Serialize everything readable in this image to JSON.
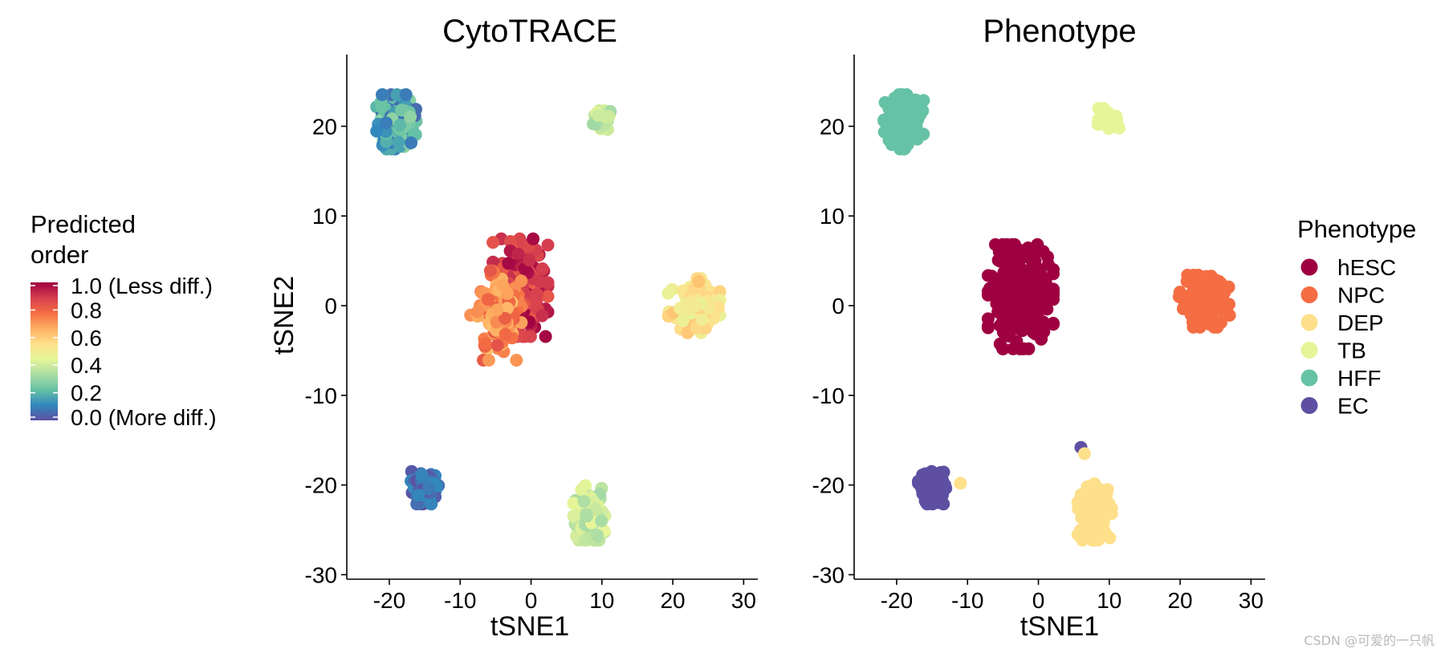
{
  "colors": {
    "hESC": "#9e0142",
    "NPC": "#f46d43",
    "DEP": "#fee08b",
    "TB": "#e6f598",
    "HFF": "#66c2a5",
    "EC": "#5e4fa2",
    "axis": "#000000"
  },
  "legend_cytotrace": {
    "title_line1": "Predicted",
    "title_line2": "order",
    "ticks": [
      {
        "value": 1.0,
        "label": "1.0 (Less diff.)"
      },
      {
        "value": 0.8,
        "label": "0.8"
      },
      {
        "value": 0.6,
        "label": "0.6"
      },
      {
        "value": 0.4,
        "label": "0.4"
      },
      {
        "value": 0.2,
        "label": "0.2"
      },
      {
        "value": 0.0,
        "label": "0.0 (More diff.)"
      }
    ],
    "gradient": [
      "#5e4fa2",
      "#3288bd",
      "#66c2a5",
      "#abdda4",
      "#e6f598",
      "#fee08b",
      "#fdae61",
      "#f46d43",
      "#d53e4f",
      "#9e0142"
    ]
  },
  "legend_phenotype": {
    "title": "Phenotype",
    "items": [
      "hESC",
      "NPC",
      "DEP",
      "TB",
      "HFF",
      "EC"
    ]
  },
  "watermark": "CSDN @可爱的一只帆",
  "chart_data": [
    {
      "type": "scatter",
      "title": "CytoTRACE",
      "xlabel": "tSNE1",
      "ylabel": "tSNE2",
      "xlim": [
        -26,
        32
      ],
      "ylim": [
        -30.5,
        28
      ],
      "xticks": [
        -20,
        -10,
        0,
        10,
        20,
        30
      ],
      "yticks": [
        -30,
        -20,
        -10,
        0,
        10,
        20
      ],
      "xtick_labels": [
        "-20",
        "-10",
        "0",
        "10",
        "20",
        "30"
      ],
      "ytick_labels": [
        "-30",
        "-20",
        "-10",
        "0",
        "10",
        "20"
      ],
      "color_by": "predicted_order",
      "legend_position": "left",
      "clusters": [
        {
          "phenotype": "hESC",
          "center": [
            -1.5,
            2.0
          ],
          "spread": [
            3.2,
            4.5
          ],
          "n": 230,
          "order_range": [
            0.82,
            1.0
          ]
        },
        {
          "phenotype": "NPC",
          "center": [
            -5.0,
            -1.0
          ],
          "spread": [
            3.0,
            4.2
          ],
          "n": 110,
          "order_range": [
            0.62,
            0.85
          ]
        },
        {
          "phenotype": "DEP",
          "center": [
            23.0,
            0.0
          ],
          "spread": [
            3.0,
            2.5
          ],
          "n": 130,
          "order_range": [
            0.45,
            0.62
          ]
        },
        {
          "phenotype": "TB",
          "center": [
            10.0,
            20.8
          ],
          "spread": [
            1.3,
            1.0
          ],
          "n": 40,
          "order_range": [
            0.3,
            0.45
          ]
        },
        {
          "phenotype": "TB",
          "center": [
            8.0,
            -23.0
          ],
          "spread": [
            2.0,
            2.6
          ],
          "n": 120,
          "order_range": [
            0.32,
            0.45
          ]
        },
        {
          "phenotype": "HFF",
          "center": [
            -19.0,
            20.5
          ],
          "spread": [
            2.3,
            2.5
          ],
          "n": 180,
          "order_range": [
            0.05,
            0.3
          ]
        },
        {
          "phenotype": "EC",
          "center": [
            -15.0,
            -20.3
          ],
          "spread": [
            1.6,
            1.5
          ],
          "n": 120,
          "order_range": [
            0.0,
            0.12
          ]
        }
      ]
    },
    {
      "type": "scatter",
      "title": "Phenotype",
      "xlabel": "tSNE1",
      "ylabel": "",
      "xlim": [
        -26,
        32
      ],
      "ylim": [
        -30.5,
        28
      ],
      "xticks": [
        -20,
        -10,
        0,
        10,
        20,
        30
      ],
      "yticks": [
        -30,
        -20,
        -10,
        0,
        10,
        20
      ],
      "xtick_labels": [
        "-20",
        "-10",
        "0",
        "10",
        "20",
        "30"
      ],
      "ytick_labels": [
        "-30",
        "-20",
        "-10",
        "0",
        "10",
        "20"
      ],
      "color_by": "phenotype",
      "legend_position": "right",
      "clusters": [
        {
          "phenotype": "hESC",
          "center": [
            -2.5,
            1.0
          ],
          "spread": [
            3.8,
            4.8
          ],
          "n": 300
        },
        {
          "phenotype": "NPC",
          "center": [
            23.5,
            0.5
          ],
          "spread": [
            3.0,
            2.4
          ],
          "n": 140
        },
        {
          "phenotype": "DEP",
          "center": [
            8.0,
            -23.0
          ],
          "spread": [
            2.0,
            2.6
          ],
          "n": 150
        },
        {
          "phenotype": "TB",
          "center": [
            10.0,
            20.8
          ],
          "spread": [
            1.3,
            1.0
          ],
          "n": 40
        },
        {
          "phenotype": "HFF",
          "center": [
            -19.0,
            20.5
          ],
          "spread": [
            2.3,
            2.5
          ],
          "n": 180
        },
        {
          "phenotype": "EC",
          "center": [
            -15.0,
            -20.3
          ],
          "spread": [
            1.6,
            1.5
          ],
          "n": 120
        }
      ],
      "outliers": [
        {
          "phenotype": "EC",
          "x": 6.0,
          "y": -15.8
        },
        {
          "phenotype": "DEP",
          "x": -11.0,
          "y": -19.8
        },
        {
          "phenotype": "DEP",
          "x": 6.5,
          "y": -16.5
        }
      ]
    }
  ]
}
